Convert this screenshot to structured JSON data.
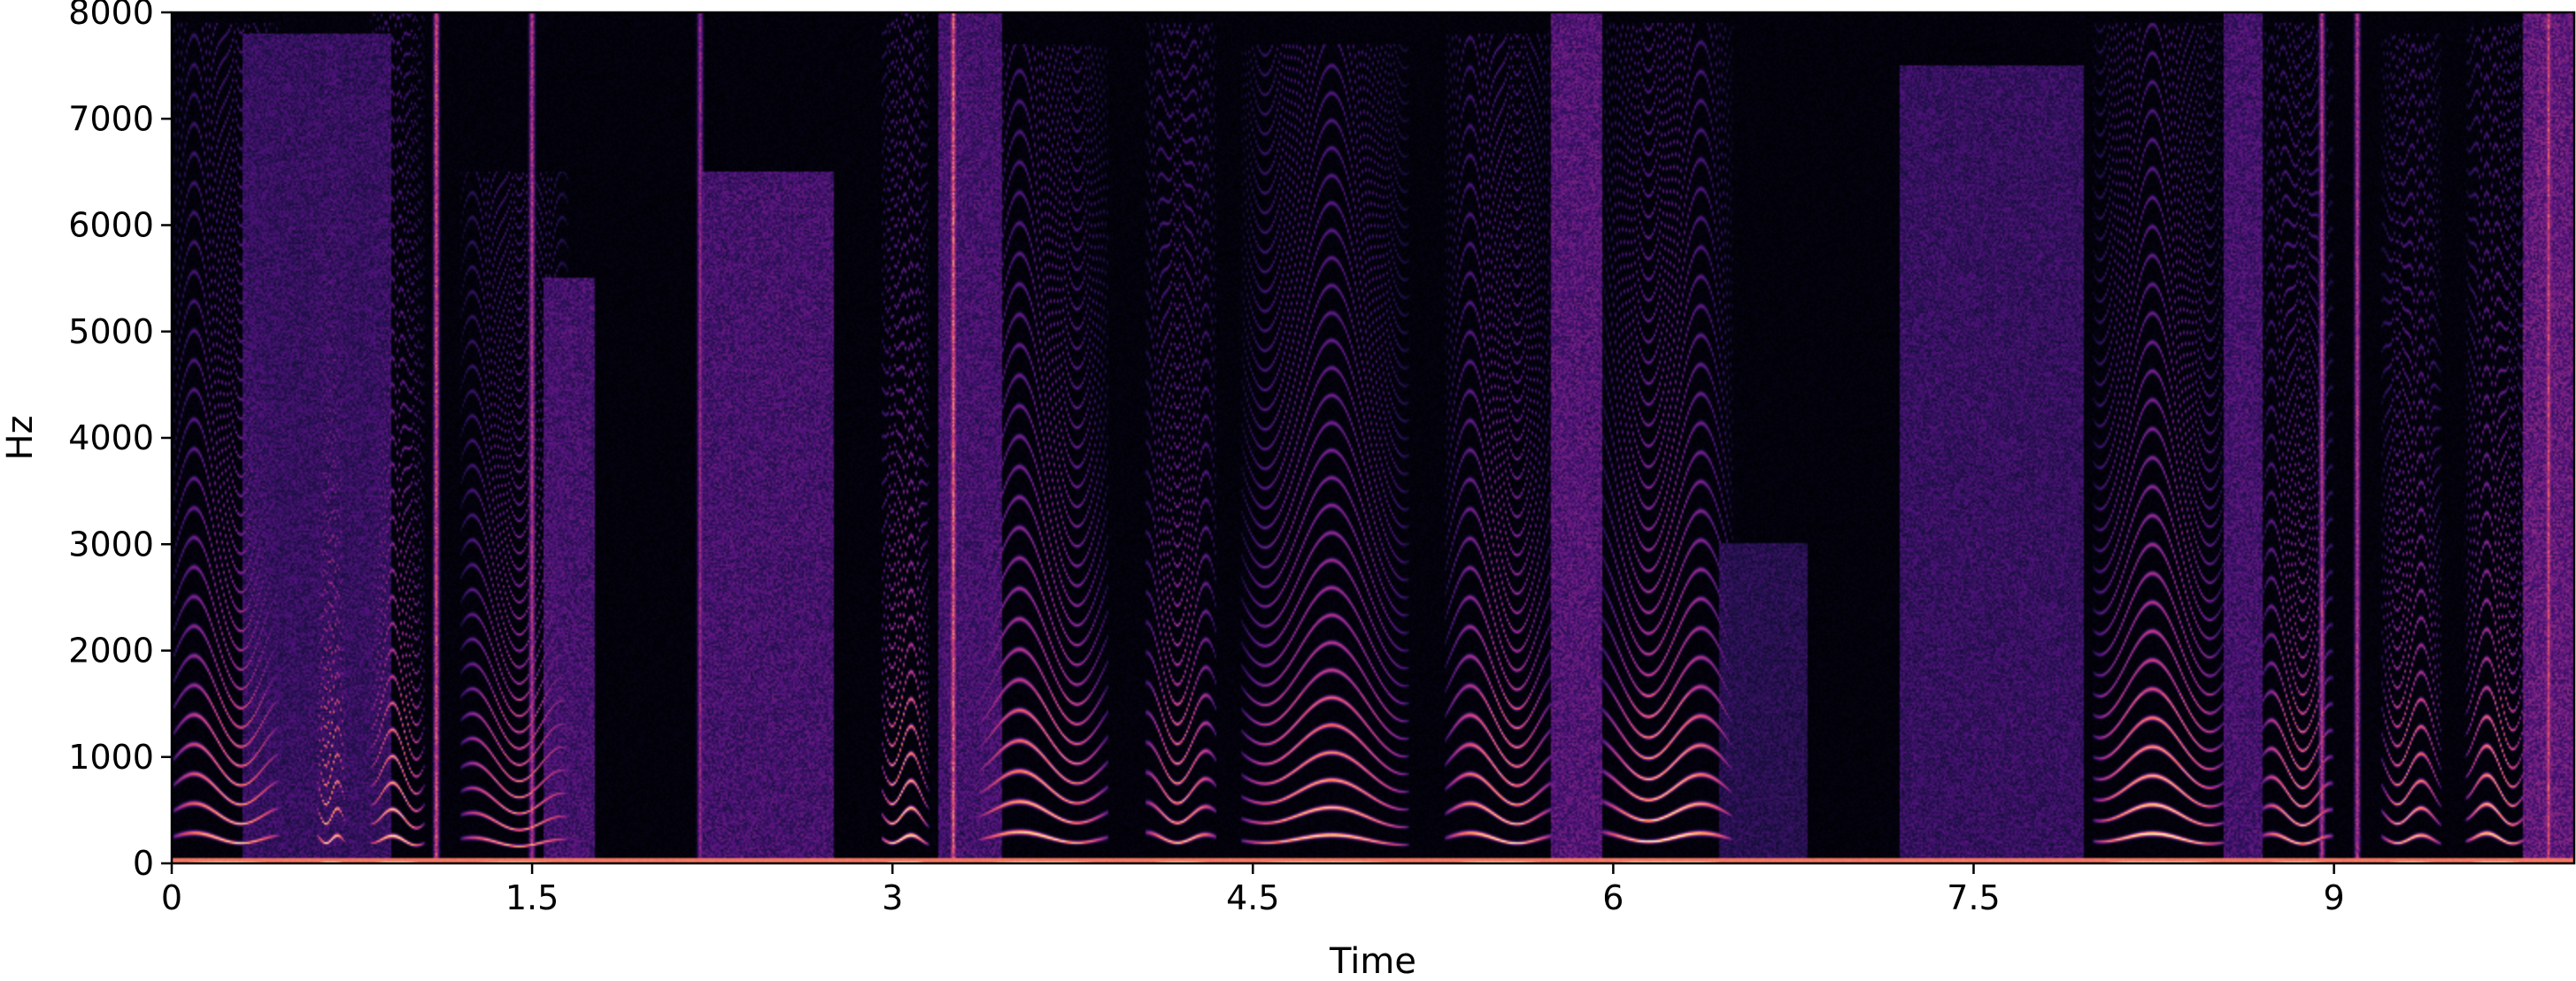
{
  "chart_data": {
    "type": "heatmap",
    "subtype": "spectrogram",
    "title": "",
    "xlabel": "Time",
    "ylabel": "Hz",
    "xlim": [
      0,
      10
    ],
    "ylim": [
      0,
      8000
    ],
    "grid": false,
    "colormap": "magma",
    "x_ticks": [
      {
        "value": 0,
        "label": "0"
      },
      {
        "value": 1.5,
        "label": "1.5"
      },
      {
        "value": 3,
        "label": "3"
      },
      {
        "value": 4.5,
        "label": "4.5"
      },
      {
        "value": 6,
        "label": "6"
      },
      {
        "value": 7.5,
        "label": "7.5"
      },
      {
        "value": 9,
        "label": "9"
      }
    ],
    "y_ticks": [
      {
        "value": 0,
        "label": "0"
      },
      {
        "value": 1000,
        "label": "1000"
      },
      {
        "value": 2000,
        "label": "2000"
      },
      {
        "value": 3000,
        "label": "3000"
      },
      {
        "value": 4000,
        "label": "4000"
      },
      {
        "value": 5000,
        "label": "5000"
      },
      {
        "value": 6000,
        "label": "6000"
      },
      {
        "value": 7000,
        "label": "7000"
      },
      {
        "value": 8000,
        "label": "8000"
      }
    ],
    "voiced_segments": [
      {
        "start": 0.0,
        "end": 0.45,
        "f0": 240,
        "intensity": 0.85,
        "max_freq": 7900
      },
      {
        "start": 0.6,
        "end": 0.72,
        "f0": 230,
        "intensity": 0.9,
        "max_freq": 7800
      },
      {
        "start": 0.82,
        "end": 1.05,
        "f0": 220,
        "intensity": 0.9,
        "max_freq": 8000
      },
      {
        "start": 1.2,
        "end": 1.65,
        "f0": 200,
        "intensity": 0.8,
        "max_freq": 6500
      },
      {
        "start": 2.95,
        "end": 3.15,
        "f0": 230,
        "intensity": 0.95,
        "max_freq": 8000
      },
      {
        "start": 3.35,
        "end": 3.9,
        "f0": 250,
        "intensity": 0.9,
        "max_freq": 7700
      },
      {
        "start": 4.05,
        "end": 4.35,
        "f0": 240,
        "intensity": 0.85,
        "max_freq": 7900
      },
      {
        "start": 4.45,
        "end": 5.15,
        "f0": 230,
        "intensity": 0.9,
        "max_freq": 7700
      },
      {
        "start": 5.3,
        "end": 5.75,
        "f0": 240,
        "intensity": 0.9,
        "max_freq": 7800
      },
      {
        "start": 5.95,
        "end": 6.5,
        "f0": 250,
        "intensity": 0.95,
        "max_freq": 7900
      },
      {
        "start": 8.0,
        "end": 8.55,
        "f0": 240,
        "intensity": 0.95,
        "max_freq": 7900
      },
      {
        "start": 8.7,
        "end": 9.0,
        "f0": 230,
        "intensity": 0.85,
        "max_freq": 7900
      },
      {
        "start": 9.2,
        "end": 9.45,
        "f0": 230,
        "intensity": 0.85,
        "max_freq": 7800
      },
      {
        "start": 9.55,
        "end": 9.8,
        "f0": 240,
        "intensity": 0.9,
        "max_freq": 7900
      }
    ],
    "noise_segments": [
      {
        "start": 0.3,
        "end": 0.9,
        "intensity": 0.25,
        "max_freq": 7800
      },
      {
        "start": 1.55,
        "end": 1.75,
        "intensity": 0.3,
        "max_freq": 5500
      },
      {
        "start": 2.2,
        "end": 2.75,
        "intensity": 0.3,
        "max_freq": 6500
      },
      {
        "start": 3.2,
        "end": 3.45,
        "intensity": 0.3,
        "max_freq": 8000
      },
      {
        "start": 5.75,
        "end": 5.95,
        "intensity": 0.35,
        "max_freq": 8000
      },
      {
        "start": 6.45,
        "end": 6.8,
        "intensity": 0.2,
        "max_freq": 3000
      },
      {
        "start": 7.2,
        "end": 7.95,
        "intensity": 0.25,
        "max_freq": 7500
      },
      {
        "start": 8.55,
        "end": 8.7,
        "intensity": 0.3,
        "max_freq": 8000
      },
      {
        "start": 9.8,
        "end": 10.0,
        "intensity": 0.4,
        "max_freq": 8000
      }
    ],
    "transients": [
      {
        "time": 1.1,
        "intensity": 0.7
      },
      {
        "time": 1.5,
        "intensity": 0.6
      },
      {
        "time": 2.2,
        "intensity": 0.5
      },
      {
        "time": 3.25,
        "intensity": 0.8
      },
      {
        "time": 8.95,
        "intensity": 0.6
      },
      {
        "time": 9.1,
        "intensity": 0.6
      },
      {
        "time": 9.9,
        "intensity": 0.7
      }
    ]
  }
}
